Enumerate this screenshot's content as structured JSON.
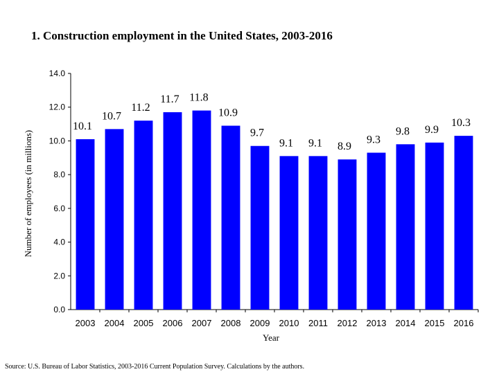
{
  "title": "1. Construction employment in the United States, 2003-2016",
  "source": "Source: U.S. Bureau of Labor Statistics, 2003-2016 Current Population Survey. Calculations by the authors.",
  "colors": {
    "bar": "#0000FF",
    "axis": "#000000"
  },
  "chart_data": {
    "type": "bar",
    "title": "1. Construction employment in the United States, 2003-2016",
    "xlabel": "Year",
    "ylabel": "Number of employees (in millions)",
    "ylim": [
      0,
      14
    ],
    "ytick_step": 2,
    "ytick_labels": [
      "0.0",
      "2.0",
      "4.0",
      "6.0",
      "8.0",
      "10.0",
      "12.0",
      "14.0"
    ],
    "categories": [
      "2003",
      "2004",
      "2005",
      "2006",
      "2007",
      "2008",
      "2009",
      "2010",
      "2011",
      "2012",
      "2013",
      "2014",
      "2015",
      "2016"
    ],
    "values": [
      10.1,
      10.7,
      11.2,
      11.7,
      11.8,
      10.9,
      9.7,
      9.1,
      9.1,
      8.9,
      9.3,
      9.8,
      9.9,
      10.3
    ],
    "data_labels": [
      "10.1",
      "10.7",
      "11.2",
      "11.7",
      "11.8",
      "10.9",
      "9.7",
      "9.1",
      "9.1",
      "8.9",
      "9.3",
      "9.8",
      "9.9",
      "10.3"
    ],
    "grid": false,
    "legend": "none"
  }
}
